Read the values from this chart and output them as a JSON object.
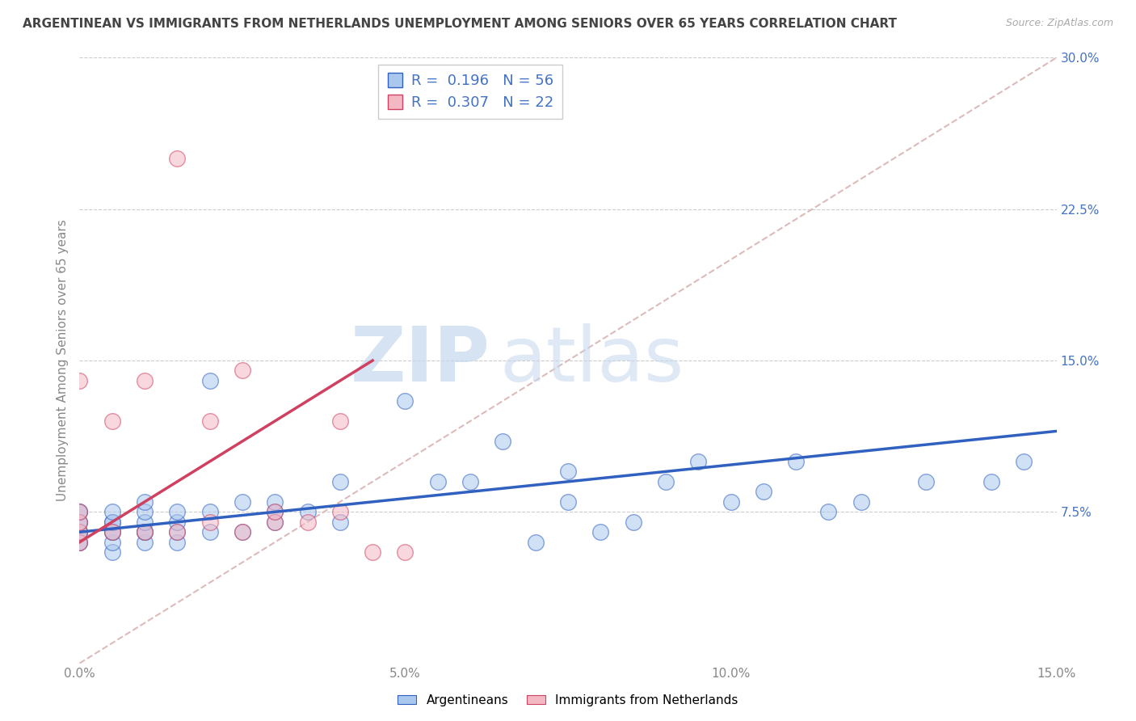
{
  "title": "ARGENTINEAN VS IMMIGRANTS FROM NETHERLANDS UNEMPLOYMENT AMONG SENIORS OVER 65 YEARS CORRELATION CHART",
  "source": "Source: ZipAtlas.com",
  "ylabel": "Unemployment Among Seniors over 65 years",
  "xlim": [
    0.0,
    0.15
  ],
  "ylim": [
    0.0,
    0.3
  ],
  "xticks": [
    0.0,
    0.05,
    0.1,
    0.15
  ],
  "xticklabels": [
    "0.0%",
    "5.0%",
    "10.0%",
    "15.0%"
  ],
  "yticks_right": [
    0.075,
    0.15,
    0.225,
    0.3
  ],
  "yticklabels_right": [
    "7.5%",
    "15.0%",
    "22.5%",
    "30.0%"
  ],
  "legend_labels": [
    "Argentineans",
    "Immigrants from Netherlands"
  ],
  "r_argentinean": 0.196,
  "n_argentinean": 56,
  "r_netherlands": 0.307,
  "n_netherlands": 22,
  "blue_color": "#aac8ee",
  "pink_color": "#f4b8c4",
  "blue_line_color": "#3060c0",
  "pink_line_color": "#d04060",
  "diagonal_color": "#ddbbbb",
  "background_color": "#ffffff",
  "watermark_zip": "ZIP",
  "watermark_atlas": "atlas",
  "argentinean_x": [
    0.0,
    0.0,
    0.0,
    0.0,
    0.0,
    0.0,
    0.0,
    0.0,
    0.0,
    0.005,
    0.005,
    0.005,
    0.005,
    0.005,
    0.005,
    0.005,
    0.01,
    0.01,
    0.01,
    0.01,
    0.01,
    0.01,
    0.015,
    0.015,
    0.015,
    0.015,
    0.02,
    0.02,
    0.02,
    0.025,
    0.025,
    0.03,
    0.03,
    0.03,
    0.035,
    0.04,
    0.04,
    0.05,
    0.055,
    0.06,
    0.065,
    0.07,
    0.075,
    0.075,
    0.08,
    0.085,
    0.09,
    0.095,
    0.1,
    0.105,
    0.11,
    0.115,
    0.12,
    0.13,
    0.14,
    0.145
  ],
  "argentinean_y": [
    0.06,
    0.06,
    0.065,
    0.065,
    0.065,
    0.07,
    0.07,
    0.075,
    0.075,
    0.055,
    0.06,
    0.065,
    0.065,
    0.07,
    0.07,
    0.075,
    0.06,
    0.065,
    0.065,
    0.07,
    0.075,
    0.08,
    0.06,
    0.065,
    0.07,
    0.075,
    0.065,
    0.075,
    0.14,
    0.065,
    0.08,
    0.07,
    0.075,
    0.08,
    0.075,
    0.07,
    0.09,
    0.13,
    0.09,
    0.09,
    0.11,
    0.06,
    0.08,
    0.095,
    0.065,
    0.07,
    0.09,
    0.1,
    0.08,
    0.085,
    0.1,
    0.075,
    0.08,
    0.09,
    0.09,
    0.1
  ],
  "netherlands_x": [
    0.0,
    0.0,
    0.0,
    0.0,
    0.0,
    0.005,
    0.005,
    0.01,
    0.01,
    0.015,
    0.015,
    0.02,
    0.02,
    0.025,
    0.025,
    0.03,
    0.03,
    0.035,
    0.04,
    0.04,
    0.045,
    0.05
  ],
  "netherlands_y": [
    0.06,
    0.065,
    0.07,
    0.075,
    0.14,
    0.065,
    0.12,
    0.065,
    0.14,
    0.065,
    0.25,
    0.07,
    0.12,
    0.065,
    0.145,
    0.07,
    0.075,
    0.07,
    0.075,
    0.12,
    0.055,
    0.055
  ],
  "pink_line_x": [
    0.0,
    0.045
  ],
  "pink_line_y": [
    0.06,
    0.15
  ],
  "blue_line_x": [
    0.0,
    0.15
  ],
  "blue_line_y": [
    0.065,
    0.115
  ]
}
